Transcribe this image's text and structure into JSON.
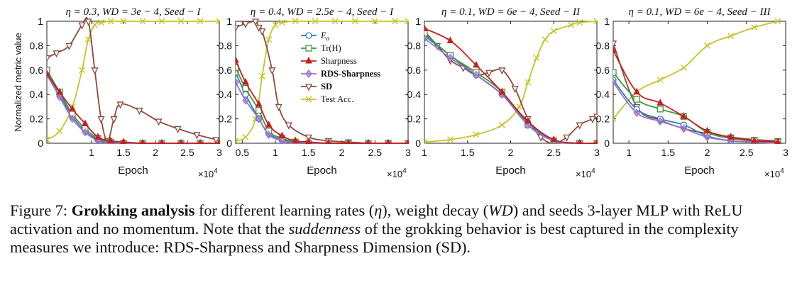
{
  "caption": {
    "label": "Figure 7:",
    "bold": "Grokking analysis",
    "part1": " for different learning rates (",
    "eta": "η",
    "part2": "), weight decay (",
    "wd": "WD",
    "part3": ") and seeds 3-layer MLP with ReLU activation and no momentum. Note that the ",
    "italic": "suddenness",
    "part4": " of the grokking behavior is best captured in the complexity measures we introduce: RDS-Sharpness and Sharpness Dimension (SD)."
  },
  "colors": {
    "E_alpha": "#2f7fb0",
    "TrH": "#3a9a3a",
    "Sharpness": "#c62020",
    "RDS-Sharpness": "#9a6fd0",
    "SD": "#8a4a3a",
    "TestAcc": "#c4c42a"
  },
  "chart_data": [
    {
      "type": "line",
      "title": "η = 0.3, WD = 3e − 4, Seed − I",
      "xlabel": "Epoch",
      "ylabel": "Normalized metric value",
      "x_multiplier": "×10^4",
      "xlim": [
        0.3,
        3.0
      ],
      "ylim": [
        0,
        1
      ],
      "xticks": [
        1,
        1.5,
        2,
        2.5,
        3
      ],
      "yticks": [
        0,
        0.2,
        0.4,
        0.6,
        0.8,
        1
      ],
      "series": [
        {
          "key": "E_alpha",
          "marker": "circle",
          "x": [
            0.3,
            0.5,
            0.7,
            0.9,
            1.1,
            1.3,
            1.5,
            1.8,
            2.1,
            2.4,
            2.7,
            3.0
          ],
          "y": [
            0.58,
            0.4,
            0.22,
            0.1,
            0.03,
            0.01,
            0.0,
            0.0,
            0.0,
            0.0,
            0.0,
            0.0
          ]
        },
        {
          "key": "TrH",
          "marker": "square",
          "x": [
            0.3,
            0.5,
            0.7,
            0.9,
            1.1,
            1.3,
            1.5,
            1.8,
            2.1,
            2.4,
            2.7,
            3.0
          ],
          "y": [
            0.6,
            0.42,
            0.24,
            0.12,
            0.04,
            0.01,
            0.0,
            0.0,
            0.0,
            0.0,
            0.0,
            0.0
          ]
        },
        {
          "key": "Sharpness",
          "marker": "triangle",
          "x": [
            0.3,
            0.5,
            0.7,
            0.9,
            1.1,
            1.3,
            1.5,
            1.8,
            2.1,
            2.4,
            2.7,
            3.0
          ],
          "y": [
            0.57,
            0.42,
            0.28,
            0.16,
            0.05,
            0.02,
            0.01,
            0.0,
            0.0,
            0.0,
            0.0,
            0.0
          ]
        },
        {
          "key": "RDS-Sharpness",
          "marker": "diamond",
          "x": [
            0.3,
            0.5,
            0.7,
            0.9,
            1.1,
            1.3,
            1.5,
            1.8,
            2.1,
            2.4,
            2.7,
            3.0
          ],
          "y": [
            0.56,
            0.38,
            0.2,
            0.09,
            0.02,
            0.0,
            0.0,
            0.0,
            0.0,
            0.0,
            0.0,
            0.0
          ]
        },
        {
          "key": "SD",
          "marker": "triangle-down",
          "x": [
            0.3,
            0.45,
            0.65,
            0.85,
            0.95,
            1.05,
            1.15,
            1.25,
            1.35,
            1.45,
            1.75,
            2.05,
            2.35,
            2.65,
            2.95
          ],
          "y": [
            0.7,
            0.74,
            0.8,
            0.97,
            1.0,
            0.6,
            0.2,
            0.02,
            0.2,
            0.32,
            0.27,
            0.18,
            0.12,
            0.07,
            0.03
          ]
        },
        {
          "key": "TestAcc",
          "marker": "x",
          "x": [
            0.3,
            0.5,
            0.7,
            0.85,
            0.95,
            1.05,
            1.15,
            1.3,
            1.5,
            1.8,
            2.1,
            2.4,
            2.7,
            3.0
          ],
          "y": [
            0.03,
            0.1,
            0.3,
            0.6,
            0.85,
            0.97,
            0.99,
            1.0,
            1.0,
            1.0,
            1.0,
            1.0,
            1.0,
            1.0
          ]
        }
      ]
    },
    {
      "type": "line",
      "title": "η = 0.4, WD = 2.5e − 4, Seed − I",
      "xlabel": "Epoch",
      "ylabel": "",
      "x_multiplier": "×10^4",
      "xlim": [
        0.4,
        3.0
      ],
      "ylim": [
        0,
        1
      ],
      "xticks": [
        0.5,
        1,
        1.5,
        2,
        2.5,
        3
      ],
      "yticks": [
        0,
        0.2,
        0.4,
        0.6,
        0.8,
        1
      ],
      "series": [
        {
          "key": "E_alpha",
          "marker": "circle",
          "x": [
            0.4,
            0.55,
            0.75,
            0.9,
            1.1,
            1.3,
            1.5,
            1.8,
            2.1,
            2.4,
            2.7,
            3.0
          ],
          "y": [
            0.58,
            0.4,
            0.2,
            0.08,
            0.03,
            0.01,
            0.0,
            0.0,
            0.0,
            0.0,
            0.0,
            0.0
          ]
        },
        {
          "key": "TrH",
          "marker": "square",
          "x": [
            0.4,
            0.55,
            0.75,
            0.9,
            1.1,
            1.3,
            1.5,
            1.8,
            2.1,
            2.4,
            2.7,
            3.0
          ],
          "y": [
            0.62,
            0.45,
            0.27,
            0.1,
            0.04,
            0.01,
            0.0,
            0.0,
            0.0,
            0.0,
            0.0,
            0.0
          ]
        },
        {
          "key": "Sharpness",
          "marker": "triangle",
          "x": [
            0.4,
            0.55,
            0.75,
            0.9,
            1.1,
            1.3,
            1.5,
            1.8,
            2.1,
            2.4,
            2.7,
            3.0
          ],
          "y": [
            0.68,
            0.5,
            0.32,
            0.15,
            0.06,
            0.02,
            0.01,
            0.0,
            0.0,
            0.0,
            0.0,
            0.0
          ]
        },
        {
          "key": "RDS-Sharpness",
          "marker": "diamond",
          "x": [
            0.4,
            0.55,
            0.75,
            0.9,
            1.1,
            1.3,
            1.5,
            1.8,
            2.1,
            2.4,
            2.7,
            3.0
          ],
          "y": [
            0.5,
            0.35,
            0.2,
            0.07,
            0.02,
            0.0,
            0.0,
            0.0,
            0.0,
            0.0,
            0.0,
            0.0
          ]
        },
        {
          "key": "SD",
          "marker": "triangle-down",
          "x": [
            0.4,
            0.55,
            0.7,
            0.75,
            0.8,
            0.95,
            1.05,
            1.2,
            1.5,
            1.8,
            2.1,
            2.4,
            2.7,
            3.0
          ],
          "y": [
            0.95,
            0.98,
            1.0,
            0.95,
            0.92,
            0.6,
            0.3,
            0.15,
            0.05,
            0.02,
            0.01,
            0.0,
            0.0,
            0.0
          ]
        },
        {
          "key": "TestAcc",
          "marker": "x",
          "x": [
            0.4,
            0.55,
            0.7,
            0.8,
            0.9,
            1.0,
            1.1,
            1.3,
            1.6,
            1.9,
            2.2,
            2.5,
            2.8,
            3.0
          ],
          "y": [
            0.02,
            0.05,
            0.2,
            0.55,
            0.85,
            0.97,
            0.99,
            1.0,
            1.0,
            1.0,
            1.0,
            1.0,
            1.0,
            1.0
          ]
        }
      ]
    },
    {
      "type": "line",
      "title": "η = 0.1, WD = 6e − 4, Seed − II",
      "xlabel": "Epoch",
      "ylabel": "",
      "x_multiplier": "×10^4",
      "xlim": [
        1.0,
        3.0
      ],
      "ylim": [
        0,
        1
      ],
      "xticks": [
        1,
        1.5,
        2,
        2.5,
        3
      ],
      "yticks": [
        0,
        0.2,
        0.4,
        0.6,
        0.8,
        1
      ],
      "series": [
        {
          "key": "E_alpha",
          "marker": "circle",
          "x": [
            1.0,
            1.3,
            1.6,
            1.9,
            2.2,
            2.5,
            2.8,
            3.0
          ],
          "y": [
            0.88,
            0.72,
            0.56,
            0.4,
            0.17,
            0.02,
            0.0,
            0.0
          ]
        },
        {
          "key": "TrH",
          "marker": "square",
          "x": [
            1.0,
            1.3,
            1.6,
            1.9,
            2.2,
            2.5,
            2.8,
            3.0
          ],
          "y": [
            0.9,
            0.72,
            0.58,
            0.42,
            0.15,
            0.02,
            0.0,
            0.0
          ]
        },
        {
          "key": "Sharpness",
          "marker": "triangle",
          "x": [
            1.0,
            1.3,
            1.6,
            1.9,
            2.2,
            2.5,
            2.8,
            3.0
          ],
          "y": [
            0.94,
            0.84,
            0.64,
            0.42,
            0.18,
            0.03,
            0.0,
            0.0
          ]
        },
        {
          "key": "RDS-Sharpness",
          "marker": "diamond",
          "x": [
            1.0,
            1.3,
            1.6,
            1.9,
            2.2,
            2.5,
            2.8,
            3.0
          ],
          "y": [
            0.86,
            0.7,
            0.56,
            0.4,
            0.15,
            0.02,
            0.0,
            0.0
          ]
        },
        {
          "key": "SD",
          "marker": "triangle-down",
          "x": [
            1.0,
            1.15,
            1.3,
            1.45,
            1.6,
            1.75,
            1.9,
            2.05,
            2.2,
            2.35,
            2.5,
            2.65,
            2.8,
            2.95,
            3.0
          ],
          "y": [
            0.92,
            0.8,
            0.68,
            0.62,
            0.56,
            0.58,
            0.6,
            0.45,
            0.2,
            0.05,
            0.0,
            0.05,
            0.15,
            0.2,
            0.22
          ]
        },
        {
          "key": "TestAcc",
          "marker": "x",
          "x": [
            1.0,
            1.3,
            1.6,
            1.9,
            2.1,
            2.2,
            2.3,
            2.4,
            2.5,
            2.7,
            2.8,
            3.0
          ],
          "y": [
            0.01,
            0.03,
            0.07,
            0.15,
            0.3,
            0.5,
            0.7,
            0.85,
            0.92,
            0.97,
            0.99,
            1.0
          ]
        }
      ]
    },
    {
      "type": "line",
      "title": "η = 0.1, WD = 6e − 4, Seed − III",
      "xlabel": "Epoch",
      "ylabel": "",
      "x_multiplier": "×10^4",
      "xlim": [
        0.8,
        3.0
      ],
      "ylim": [
        0,
        1
      ],
      "xticks": [
        1,
        1.5,
        2,
        2.5,
        3
      ],
      "yticks": [
        0,
        0.2,
        0.4,
        0.6,
        0.8,
        1
      ],
      "series": [
        {
          "key": "E_alpha",
          "marker": "circle",
          "x": [
            0.8,
            1.1,
            1.4,
            1.7,
            2.0,
            2.3,
            2.6,
            2.9
          ],
          "y": [
            0.52,
            0.28,
            0.2,
            0.15,
            0.06,
            0.02,
            0.01,
            0.0
          ]
        },
        {
          "key": "TrH",
          "marker": "square",
          "x": [
            0.8,
            1.1,
            1.4,
            1.7,
            2.0,
            2.3,
            2.6,
            2.9
          ],
          "y": [
            0.58,
            0.36,
            0.28,
            0.22,
            0.09,
            0.04,
            0.02,
            0.01
          ]
        },
        {
          "key": "Sharpness",
          "marker": "triangle",
          "x": [
            0.8,
            1.1,
            1.4,
            1.7,
            2.0,
            2.3,
            2.6,
            2.9
          ],
          "y": [
            0.76,
            0.42,
            0.33,
            0.22,
            0.1,
            0.05,
            0.02,
            0.01
          ]
        },
        {
          "key": "RDS-Sharpness",
          "marker": "diamond",
          "x": [
            0.8,
            1.1,
            1.4,
            1.7,
            2.0,
            2.3,
            2.6,
            2.9
          ],
          "y": [
            0.5,
            0.25,
            0.18,
            0.12,
            0.05,
            0.02,
            0.01,
            0.0
          ]
        },
        {
          "key": "SD",
          "marker": "triangle-down",
          "x": [
            0.8,
            1.1,
            1.4,
            1.7,
            2.0,
            2.3,
            2.6,
            2.9
          ],
          "y": [
            0.82,
            0.3,
            0.19,
            0.12,
            0.08,
            0.05,
            0.03,
            0.02
          ]
        },
        {
          "key": "TestAcc",
          "marker": "x",
          "x": [
            0.8,
            1.1,
            1.4,
            1.7,
            2.0,
            2.3,
            2.6,
            2.9
          ],
          "y": [
            0.2,
            0.42,
            0.52,
            0.62,
            0.8,
            0.88,
            0.95,
            1.0
          ]
        }
      ]
    }
  ],
  "legend": [
    {
      "key": "E_alpha",
      "marker": "circle",
      "label": "Eα"
    },
    {
      "key": "TrH",
      "marker": "square",
      "label": "Tr(H)"
    },
    {
      "key": "Sharpness",
      "marker": "triangle",
      "label": "Sharpness"
    },
    {
      "key": "RDS-Sharpness",
      "marker": "diamond",
      "label": "RDS-Sharpness",
      "bold": true
    },
    {
      "key": "SD",
      "marker": "triangle-down",
      "label": "SD",
      "bold": true
    },
    {
      "key": "TestAcc",
      "marker": "x",
      "label": "Test Acc."
    }
  ]
}
